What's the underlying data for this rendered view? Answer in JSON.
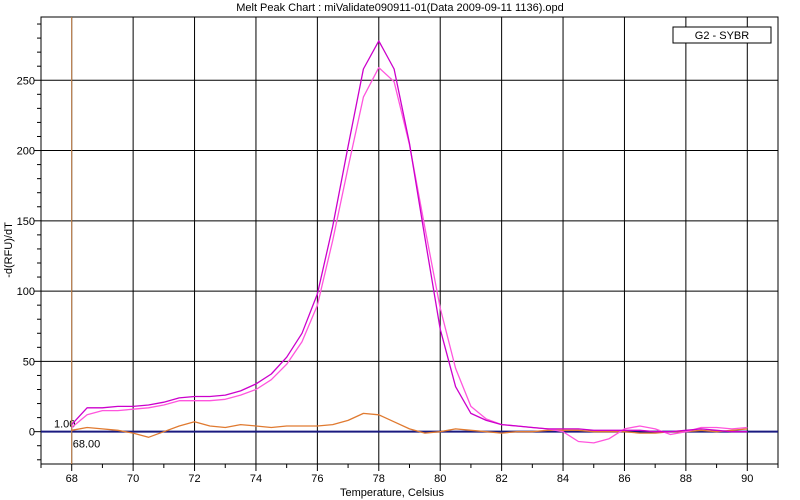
{
  "chart_data": {
    "type": "line",
    "title": "Melt Peak Chart : miValidate090911-01(Data 2009-09-11 1136).opd",
    "xlabel": "Temperature, Celsius",
    "ylabel": "-d(RFU)/dT",
    "xlim": [
      67,
      91
    ],
    "ylim": [
      -23,
      295
    ],
    "x_ticks": [
      68,
      70,
      72,
      74,
      76,
      78,
      80,
      82,
      84,
      86,
      88,
      90
    ],
    "y_ticks": [
      0,
      50,
      100,
      150,
      200,
      250
    ],
    "grid": true,
    "legend": {
      "position": "top-right",
      "entries": [
        "G2 - SYBR"
      ]
    },
    "threshold": {
      "value": 0,
      "label": "1.00",
      "color": "#1a1a80"
    },
    "cursor": {
      "x": 68,
      "label": "68.00",
      "color": "#d08a50"
    },
    "colors": {
      "series_1": "#cc00cc",
      "series_2": "#ff55dd",
      "series_3": "#e07a30"
    },
    "series": [
      {
        "color": "#cc00cc",
        "x": [
          68,
          68.5,
          69,
          69.5,
          70,
          70.5,
          71,
          71.5,
          72,
          72.5,
          73,
          73.5,
          74,
          74.5,
          75,
          75.5,
          76,
          76.5,
          77,
          77.5,
          78,
          78.5,
          79,
          79.5,
          80,
          80.5,
          81,
          81.5,
          82,
          82.5,
          83,
          83.5,
          84,
          84.5,
          85,
          85.5,
          86,
          86.5,
          87,
          87.5,
          88,
          88.5,
          89,
          89.5,
          90
        ],
        "y": [
          5,
          17,
          17,
          18,
          18,
          19,
          21,
          24,
          25,
          25,
          26,
          29,
          34,
          41,
          53,
          70,
          98,
          146,
          203,
          258,
          278,
          258,
          205,
          138,
          73,
          32,
          13,
          8,
          5,
          4,
          3,
          2,
          2,
          2,
          1,
          1,
          1,
          1,
          0,
          0,
          1,
          2,
          1,
          0,
          0
        ]
      },
      {
        "color": "#ff55dd",
        "x": [
          68,
          68.5,
          69,
          69.5,
          70,
          70.5,
          71,
          71.5,
          72,
          72.5,
          73,
          73.5,
          74,
          74.5,
          75,
          75.5,
          76,
          76.5,
          77,
          77.5,
          78,
          78.5,
          79,
          79.5,
          80,
          80.5,
          81,
          81.5,
          82,
          82.5,
          83,
          83.5,
          84,
          84.5,
          85,
          85.5,
          86,
          86.5,
          87,
          87.5,
          88,
          88.5,
          89,
          89.5,
          90
        ],
        "y": [
          3,
          12,
          15,
          15,
          16,
          17,
          19,
          22,
          22,
          22,
          23,
          26,
          30,
          37,
          48,
          64,
          90,
          136,
          188,
          238,
          259,
          249,
          204,
          145,
          88,
          45,
          18,
          9,
          5,
          4,
          3,
          2,
          0,
          -7,
          -8,
          -5,
          2,
          4,
          2,
          -2,
          0,
          3,
          3,
          2,
          3
        ]
      },
      {
        "color": "#e07a30",
        "x": [
          68,
          68.5,
          69,
          69.5,
          70,
          70.5,
          71,
          71.5,
          72,
          72.5,
          73,
          73.5,
          74,
          74.5,
          75,
          75.5,
          76,
          76.5,
          77,
          77.5,
          78,
          78.5,
          79,
          79.5,
          80,
          80.5,
          81,
          81.5,
          82,
          82.5,
          83,
          83.5,
          84,
          84.5,
          85,
          85.5,
          86,
          86.5,
          87,
          87.5,
          88,
          88.5,
          89,
          89.5,
          90
        ],
        "y": [
          1,
          3,
          2,
          1,
          -1,
          -4,
          0,
          4,
          7,
          4,
          3,
          5,
          4,
          3,
          4,
          4,
          4,
          5,
          8,
          13,
          12,
          7,
          2,
          -1,
          0,
          2,
          1,
          0,
          -1,
          0,
          0,
          1,
          1,
          1,
          0,
          0,
          0,
          -1,
          -1,
          0,
          0,
          1,
          0,
          1,
          2
        ]
      }
    ]
  }
}
